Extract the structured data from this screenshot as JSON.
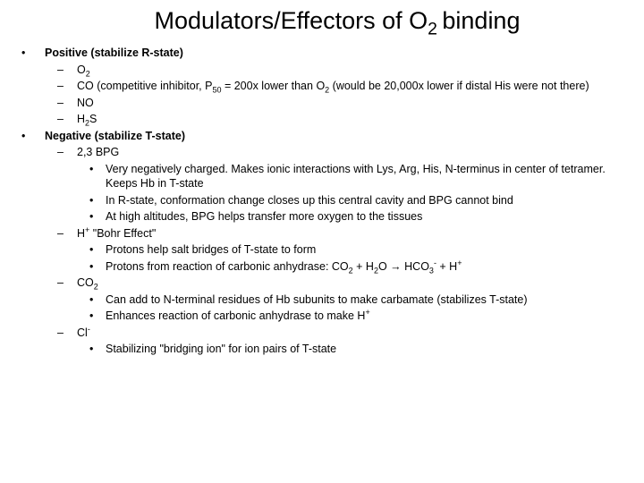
{
  "title_a": "Modulators/Effectors of O",
  "title_sub": "2 ",
  "title_b": "binding",
  "pos_head": "Positive (stabilize R-state)",
  "pos_1a": "O",
  "pos_1s": "2",
  "pos_2a": "CO (competitive inhibitor, P",
  "pos_2s": "50",
  "pos_2b": " = 200x lower than O",
  "pos_2s2": "2",
  "pos_2c": " (would be 20,000x lower if distal His were not there)",
  "pos_3": "NO",
  "pos_4a": "H",
  "pos_4s": "2",
  "pos_4b": "S",
  "neg_head": "Negative (stabilize T-state)",
  "neg_1": "2,3 BPG",
  "neg_1a": "Very negatively charged.  Makes ionic interactions with Lys, Arg, His, N-terminus in center of tetramer.  Keeps Hb in T-state",
  "neg_1b": "In R-state, conformation change closes up this central cavity and BPG cannot bind",
  "neg_1c": "At high altitudes, BPG helps transfer more oxygen to the tissues",
  "neg_2a": "H",
  "neg_2s": "+",
  "neg_2b": " \"Bohr Effect\"",
  "neg_2c": "Protons help salt bridges of T-state to form",
  "neg_2d_a": "Protons from reaction of carbonic anhydrase: CO",
  "neg_2d_s1": "2",
  "neg_2d_b": " + H",
  "neg_2d_s2": "2",
  "neg_2d_c": "O → HCO",
  "neg_2d_s3": "3",
  "neg_2d_sup": "-",
  "neg_2d_d": " + H",
  "neg_2d_s4": "+",
  "neg_3a": "CO",
  "neg_3s": "2",
  "neg_3b": "Can add to N-terminal residues of Hb subunits to make carbamate (stabilizes T-state)",
  "neg_3c_a": "Enhances reaction of carbonic anhydrase to make H",
  "neg_3c_s": "+",
  "neg_4a": "Cl",
  "neg_4s": "-",
  "neg_4b": "Stabilizing \"bridging ion\" for ion pairs of T-state",
  "bull1": "•",
  "bull2": "–",
  "bull3": "•"
}
